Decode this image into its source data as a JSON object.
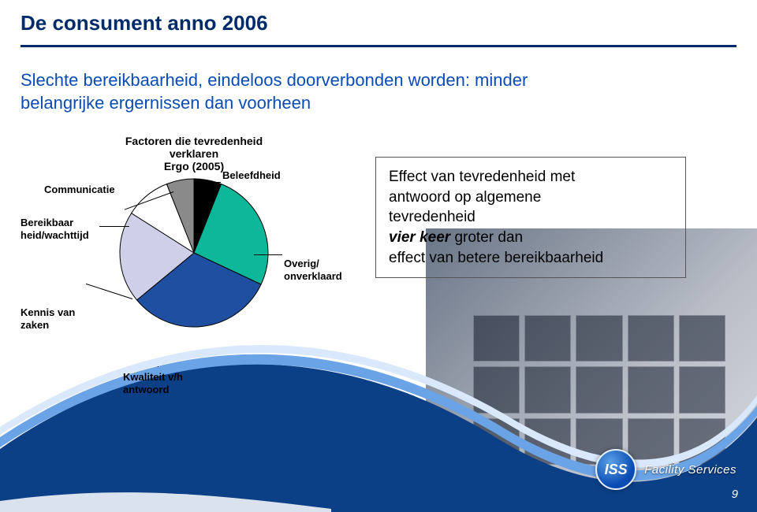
{
  "title": "De consument anno 2006",
  "subtitle": "Slechte bereikbaarheid, eindeloos doorverbonden worden: minder belangrijke ergernissen dan voorheen",
  "chart": {
    "type": "pie",
    "title_line1": "Factoren die tevredenheid verklaren",
    "title_line2": "Ergo (2005)",
    "title_fontsize": 14,
    "background_color": "#ffffff",
    "stroke_color": "#000000",
    "stroke_width": 1,
    "slices": [
      {
        "label": "Beleefdheid",
        "value": 6,
        "color": "#000000"
      },
      {
        "label": "Overig/ onverklaard",
        "value": 26,
        "color": "#0db89a"
      },
      {
        "label": "Kwaliteit v/h antwoord",
        "value": 32,
        "color": "#1f4fa0"
      },
      {
        "label": "Kennis van zaken",
        "value": 20,
        "color": "#cfcfe8"
      },
      {
        "label": "Bereikbaar heid/wachttijd",
        "value": 10,
        "color": "#ffffff"
      },
      {
        "label": "Communicatie",
        "value": 6,
        "color": "#8a8a8a"
      }
    ],
    "labels": {
      "beleefdheid": "Beleefdheid",
      "communicatie": "Communicatie",
      "bereikbaarheid_l1": "Bereikbaar",
      "bereikbaarheid_l2": "heid/wachttijd",
      "kennis_l1": "Kennis van",
      "kennis_l2": "zaken",
      "kwaliteit_l1": "Kwaliteit v/h",
      "kwaliteit_l2": "antwoord",
      "overig_l1": "Overig/",
      "overig_l2": "onverklaard"
    }
  },
  "effect_box": {
    "line1": "Effect van tevredenheid met",
    "line2": "antwoord op algemene",
    "line3": "tevredenheid",
    "line4_ital_bold": "vier keer",
    "line4_rest": " groter dan",
    "line5": "effect van betere bereikbaarheid",
    "border_color": "#555555",
    "fontsize": 19,
    "text_color": "#000000"
  },
  "footer": {
    "page_number": "9",
    "logo_initials": "ISS",
    "logo_text": "Facility Services"
  },
  "colors": {
    "title_color": "#002b6b",
    "subtitle_color": "#0a4cb4",
    "swoosh_top": "#d9e8fb",
    "swoosh_mid": "#6aa3e6",
    "swoosh_dark": "#0b3f86"
  }
}
